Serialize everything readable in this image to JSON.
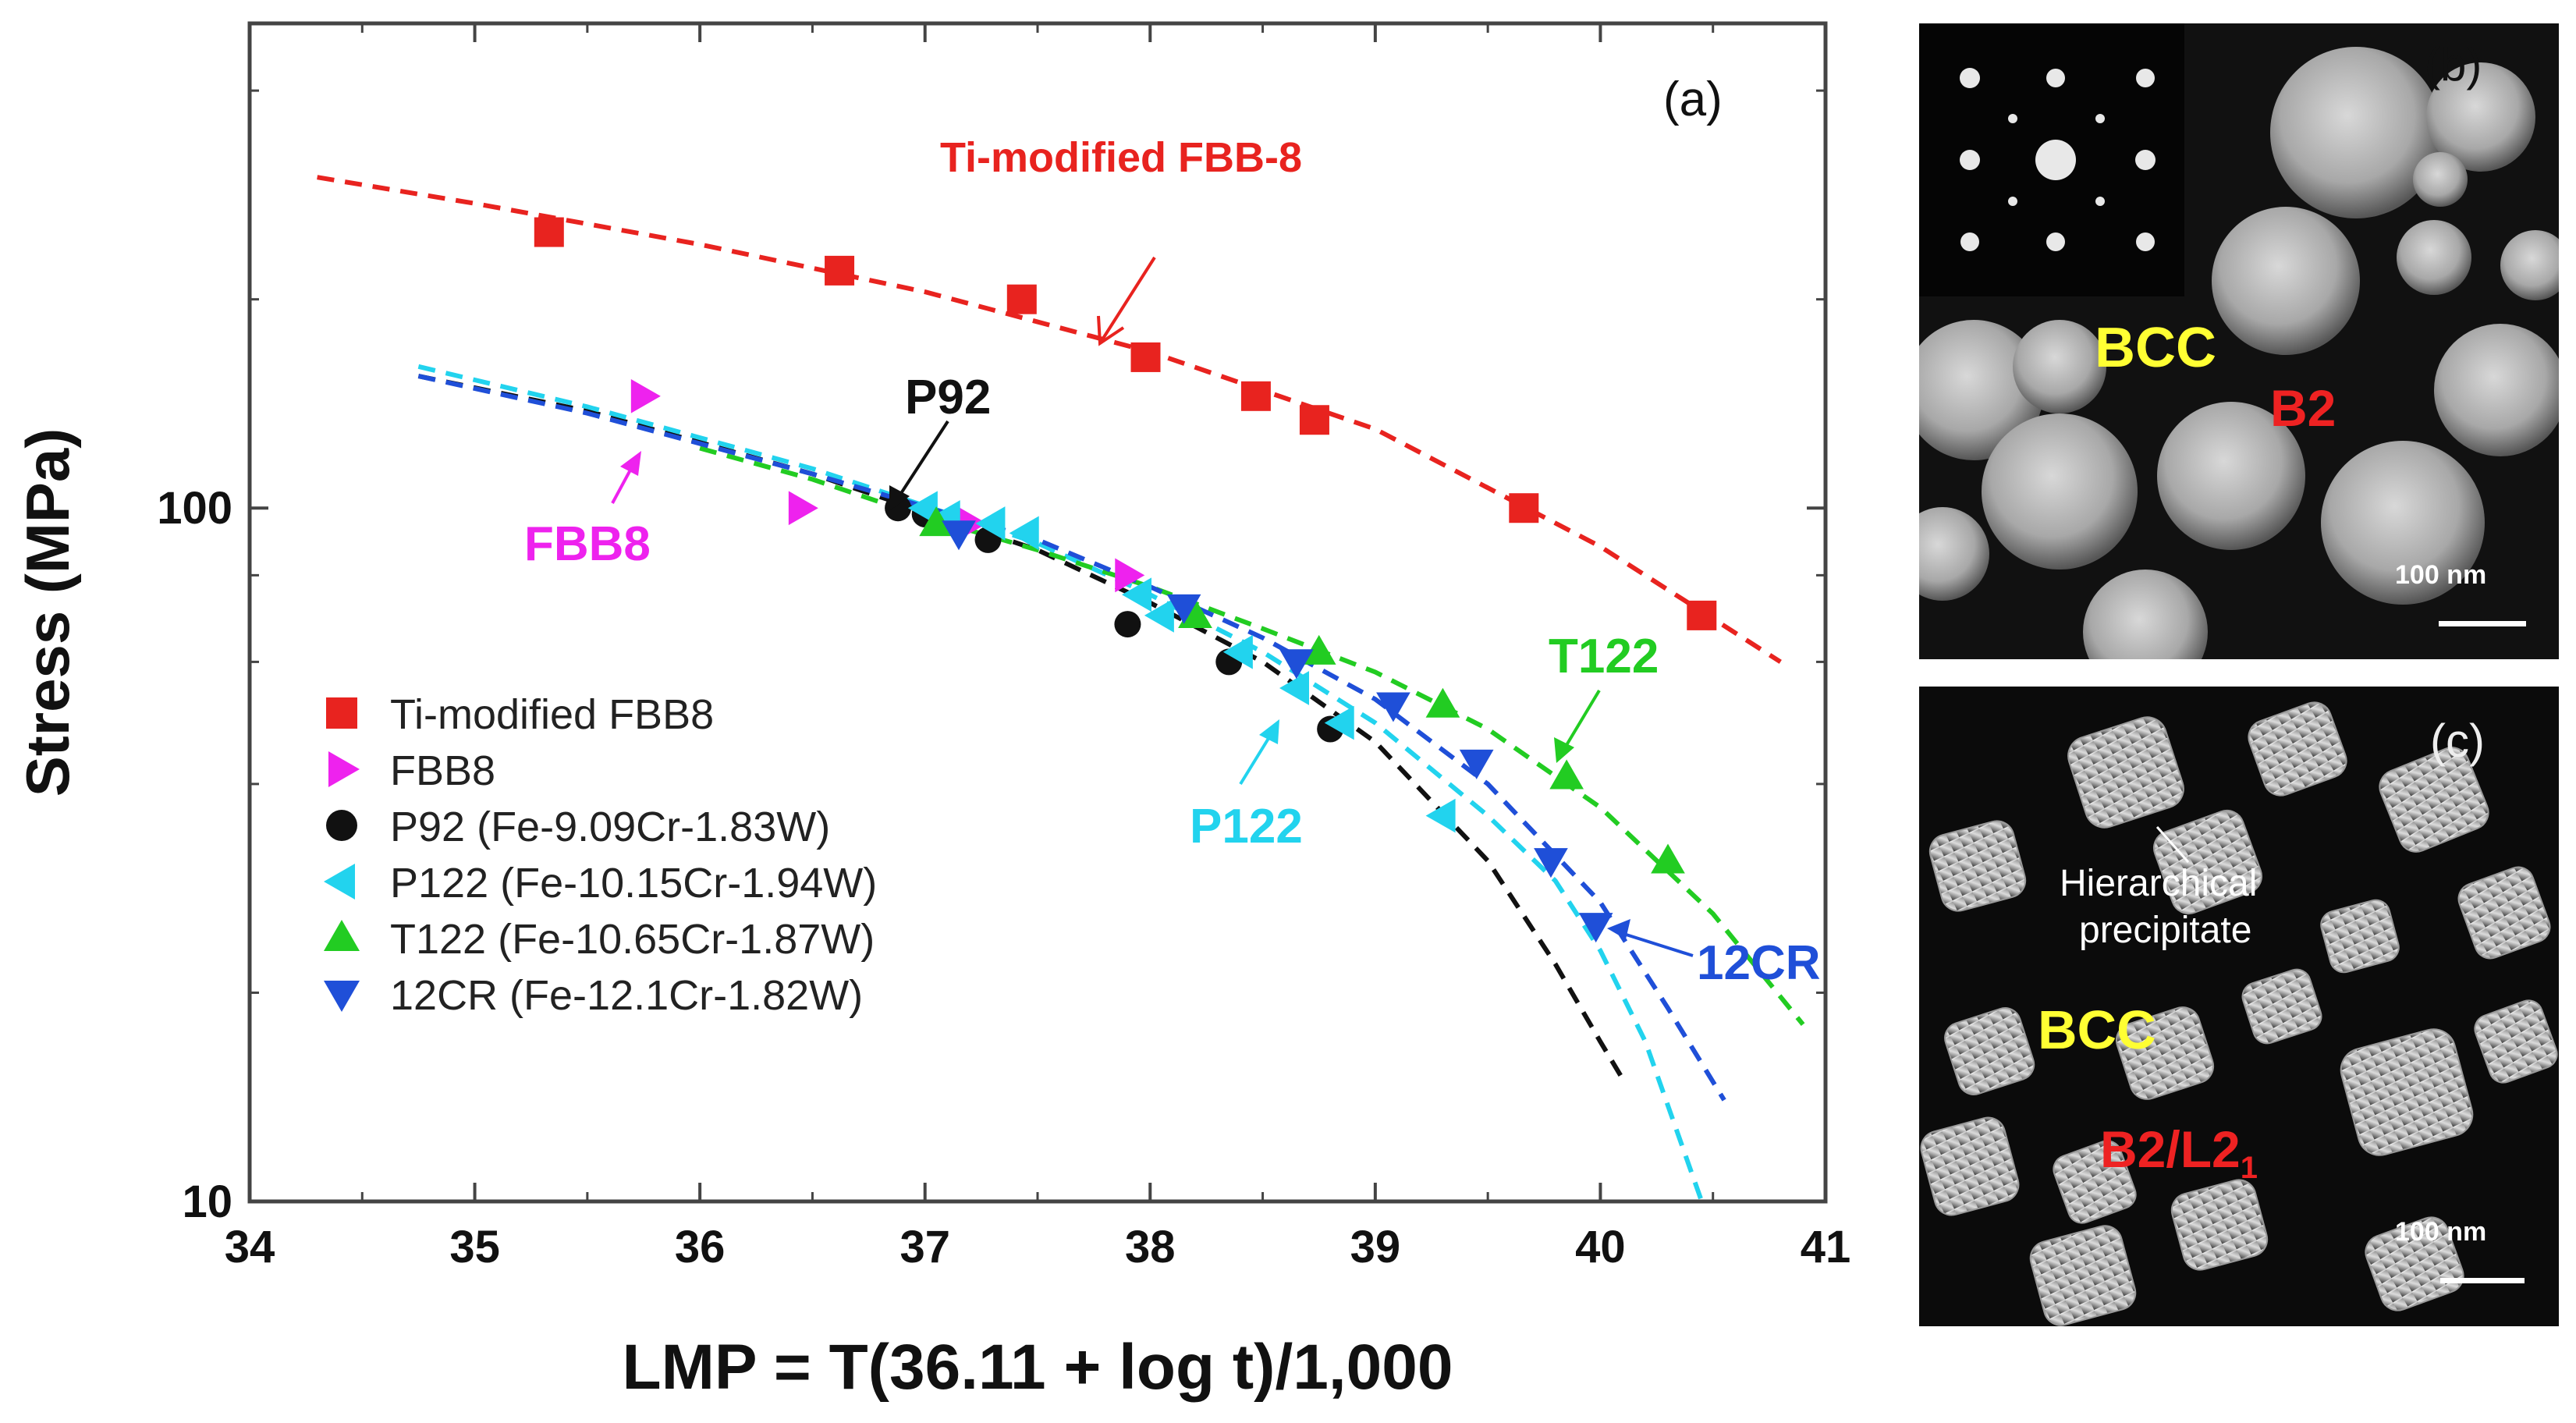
{
  "chart_data": {
    "type": "scatter",
    "panel_label": "(a)",
    "xlabel": "LMP = T(36.11 + log t)/1,000",
    "ylabel": "Stress (MPa)",
    "xlim": [
      34,
      41
    ],
    "ylim": [
      10,
      500
    ],
    "yscale": "log",
    "xticks": [
      34,
      35,
      36,
      37,
      38,
      39,
      40,
      41
    ],
    "xtick_labels": [
      "34",
      "35",
      "36",
      "37",
      "38",
      "39",
      "40",
      "41"
    ],
    "yticks": [
      10,
      100
    ],
    "ytick_labels": [
      "10",
      "100"
    ],
    "series": [
      {
        "name": "Ti-modified FBB8",
        "color": "#e8231f",
        "marker": "square",
        "x": [
          35.33,
          36.62,
          37.43,
          37.98,
          38.47,
          38.73,
          39.66,
          40.45
        ],
        "y": [
          250,
          220,
          200,
          165,
          145,
          134,
          100,
          70
        ],
        "fit": {
          "x": [
            34.3,
            35,
            36,
            37,
            38,
            39,
            40,
            40.8
          ],
          "y": [
            300,
            275,
            240,
            205,
            168,
            130,
            88,
            60
          ]
        }
      },
      {
        "name": "FBB8",
        "color": "#ee22ee",
        "marker": "triangle-right",
        "x": [
          35.75,
          36.45,
          37.2,
          37.9
        ],
        "y": [
          145,
          100,
          95,
          80
        ]
      },
      {
        "name": "P92 (Fe-9.09Cr-1.83W)",
        "color": "#111111",
        "marker": "circle",
        "x": [
          36.88,
          37.0,
          37.28,
          37.9,
          38.35,
          38.8
        ],
        "y": [
          100,
          98,
          90,
          68,
          60,
          48
        ],
        "fit": {
          "x": [
            34.75,
            35.5,
            36.5,
            37.5,
            38,
            38.5,
            39,
            39.5,
            39.8,
            40.0,
            40.1
          ],
          "y": [
            155,
            138,
            112,
            87,
            73,
            60,
            46,
            31,
            22,
            17,
            15
          ]
        }
      },
      {
        "name": "P122 (Fe-10.15Cr-1.94W)",
        "color": "#22d3ee",
        "marker": "triangle-left",
        "x": [
          37.0,
          37.1,
          37.3,
          37.45,
          37.95,
          38.05,
          38.4,
          38.65,
          38.85,
          39.3
        ],
        "y": [
          100,
          97,
          95,
          92,
          75,
          70,
          62,
          55,
          49,
          36
        ],
        "fit": {
          "x": [
            34.75,
            35.5,
            36.5,
            37.5,
            38,
            38.5,
            39,
            39.5,
            39.8,
            40.0,
            40.2,
            40.45
          ],
          "y": [
            160,
            140,
            114,
            89,
            75,
            62,
            49,
            36,
            29,
            23,
            17,
            10
          ]
        }
      },
      {
        "name": "T122 (Fe-10.65Cr-1.87W)",
        "color": "#22cc22",
        "marker": "triangle-up",
        "x": [
          37.05,
          38.2,
          38.75,
          39.3,
          39.85,
          40.3
        ],
        "y": [
          95,
          70,
          62,
          52,
          41,
          31
        ],
        "fit": {
          "x": [
            36.0,
            36.5,
            37,
            37.5,
            38,
            38.5,
            39,
            39.5,
            40,
            40.5,
            40.9
          ],
          "y": [
            122,
            110,
            97,
            87,
            77,
            67,
            58,
            48,
            37,
            26,
            18
          ]
        }
      },
      {
        "name": "12CR (Fe-12.1Cr-1.82W)",
        "color": "#1f4fd8",
        "marker": "triangle-down",
        "x": [
          37.15,
          38.15,
          38.65,
          39.08,
          39.45,
          39.78,
          39.98
        ],
        "y": [
          92,
          72,
          60,
          52,
          43,
          31,
          25
        ],
        "fit": {
          "x": [
            34.75,
            35.5,
            36.5,
            37.5,
            38,
            38.5,
            39,
            39.5,
            40.0,
            40.3,
            40.55
          ],
          "y": [
            155,
            137,
            112,
            90,
            77,
            65,
            53,
            40,
            27,
            19,
            14
          ]
        }
      }
    ],
    "annotations": [
      {
        "text": "Ti-modified FBB-8",
        "color": "#e8231f"
      },
      {
        "text": "P92",
        "color": "#111111"
      },
      {
        "text": "FBB8",
        "color": "#ee22ee"
      },
      {
        "text": "T122",
        "color": "#22cc22"
      },
      {
        "text": "P122",
        "color": "#22d3ee"
      },
      {
        "text": "12CR",
        "color": "#1f4fd8"
      }
    ]
  },
  "panel_b": {
    "label": "(b)",
    "phase_matrix": "BCC",
    "phase_precipitate": "B2",
    "scale_bar_text": "100 nm",
    "colors": {
      "matrix": "#ffff33",
      "precipitate": "#ee2222"
    }
  },
  "panel_c": {
    "label": "(c)",
    "precipitate_note_line1": "Hierarchical",
    "precipitate_note_line2": "precipitate",
    "phase_matrix": "BCC",
    "phase_precipitate_main": "B2/L2",
    "phase_precipitate_sub": "1",
    "scale_bar_text": "100 nm"
  }
}
